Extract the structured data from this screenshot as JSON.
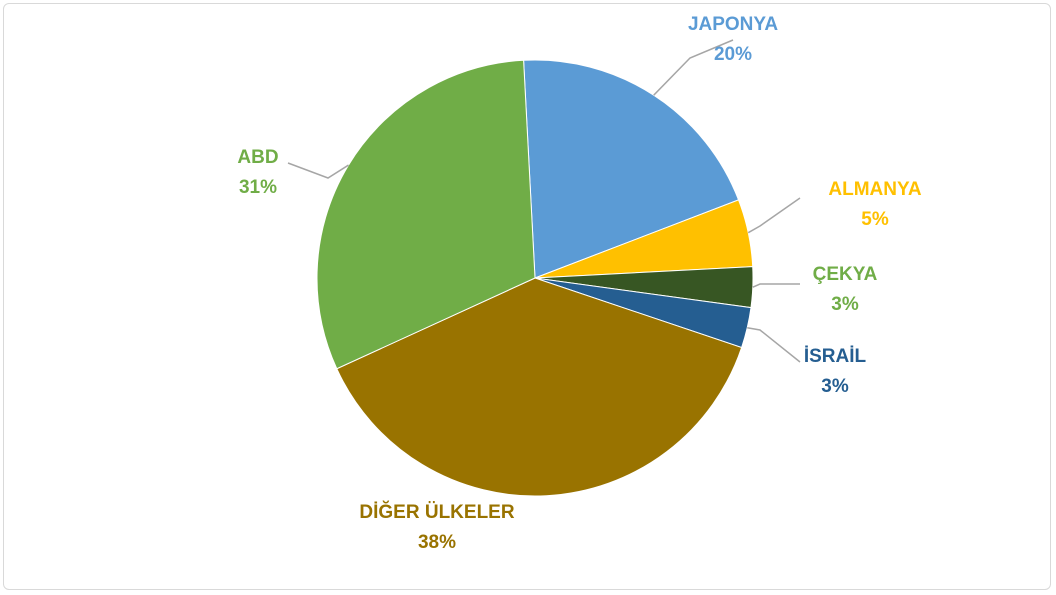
{
  "chart_data": {
    "type": "pie",
    "title": "",
    "slices": [
      {
        "label": "JAPONYA",
        "value": 20,
        "value_label": "20%",
        "color": "#5b9bd5"
      },
      {
        "label": "ALMANYA",
        "value": 5,
        "value_label": "5%",
        "color": "#ffc000"
      },
      {
        "label": "ÇEKYA",
        "value": 3,
        "value_label": "3%",
        "color": "#375623"
      },
      {
        "label": "İSRAİL",
        "value": 3,
        "value_label": "3%",
        "color": "#255e91"
      },
      {
        "label": "DİĞER ÜLKELER",
        "value": 38,
        "value_label": "38%",
        "color": "#997300"
      },
      {
        "label": "ABD",
        "value": 31,
        "value_label": "31%",
        "color": "#70ad47"
      }
    ],
    "label_colors": {
      "JAPONYA": "#5b9bd5",
      "ALMANYA": "#ffc000",
      "ÇEKYA": "#70ad47",
      "İSRAİL": "#255e91",
      "DİĞER ÜLKELER": "#997300",
      "ABD": "#70ad47"
    },
    "leader_line_color": "#a6a6a6",
    "start_angle_deg": -3
  }
}
